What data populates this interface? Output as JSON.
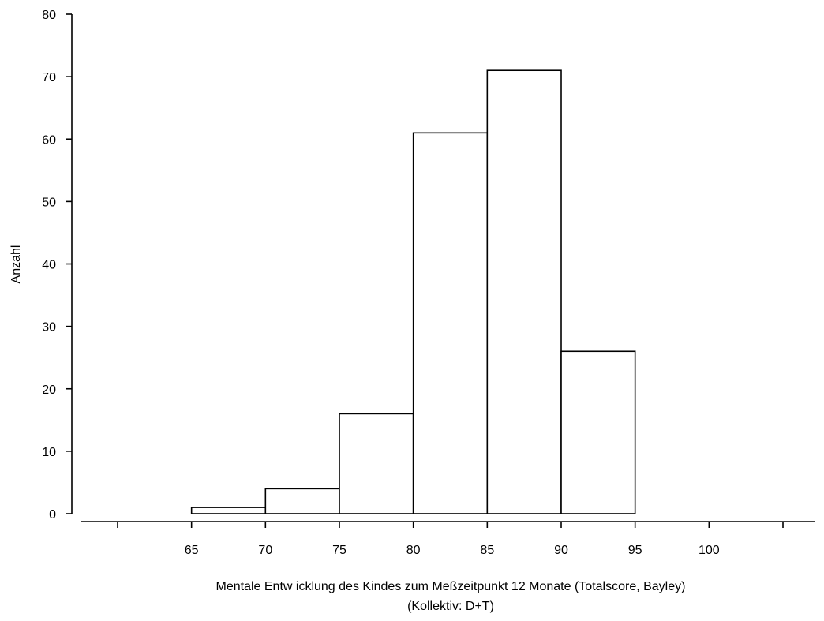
{
  "chart_data": {
    "type": "bar",
    "xlabel_line1": "Mentale Entw icklung des Kindes zum Meßzeitpunkt 12 Monate (Totalscore, Bayley)",
    "xlabel_line2": "(Kollektiv: D+T)",
    "ylabel": "Anzahl",
    "ylim": [
      0,
      80
    ],
    "yticks": [
      0,
      10,
      20,
      30,
      40,
      50,
      60,
      70,
      80
    ],
    "xlim": [
      60,
      105
    ],
    "xticks": [
      60,
      65,
      70,
      75,
      80,
      85,
      90,
      95,
      100,
      105
    ],
    "xtick_labels": [
      "65",
      "70",
      "75",
      "80",
      "85",
      "90",
      "95",
      "100"
    ],
    "bins": [
      {
        "start": 60,
        "end": 65,
        "value": 0
      },
      {
        "start": 65,
        "end": 70,
        "value": 1
      },
      {
        "start": 70,
        "end": 75,
        "value": 4
      },
      {
        "start": 75,
        "end": 80,
        "value": 16
      },
      {
        "start": 80,
        "end": 85,
        "value": 61
      },
      {
        "start": 85,
        "end": 90,
        "value": 71
      },
      {
        "start": 90,
        "end": 95,
        "value": 26
      },
      {
        "start": 95,
        "end": 100,
        "value": 0
      },
      {
        "start": 100,
        "end": 105,
        "value": 0
      }
    ],
    "grid": false
  }
}
